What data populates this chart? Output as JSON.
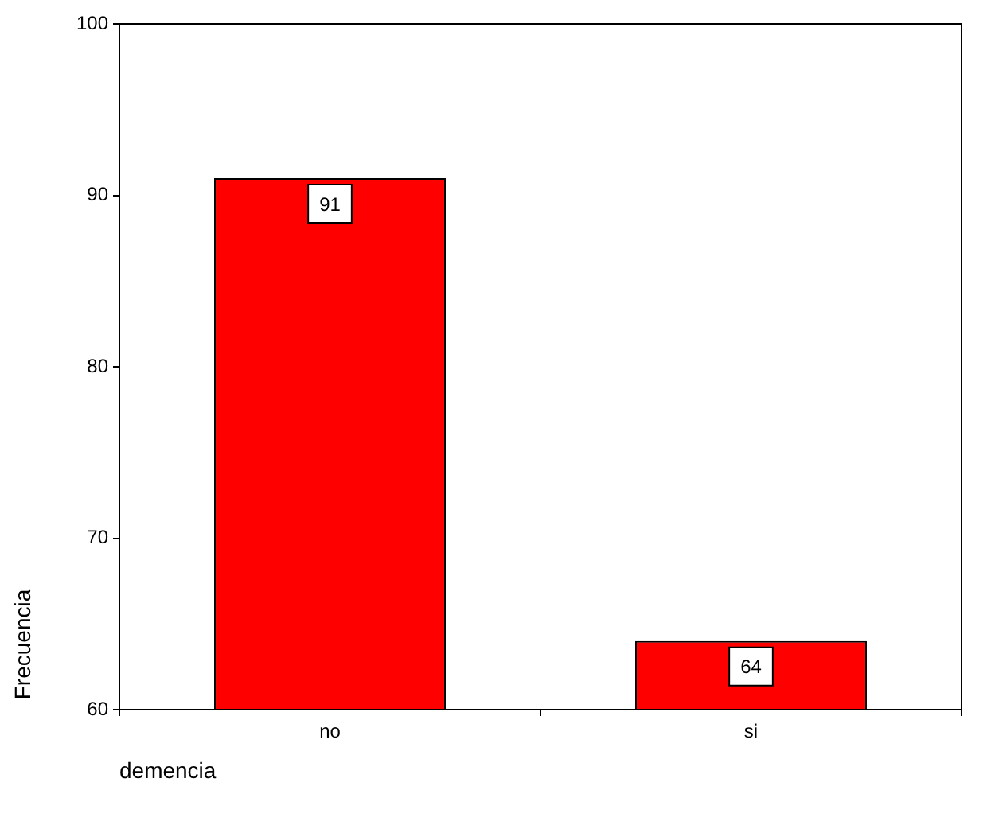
{
  "chart_data": {
    "type": "bar",
    "xlabel": "demencia",
    "ylabel": "Frecuencia",
    "categories": [
      "no",
      "si"
    ],
    "values": [
      91,
      64
    ],
    "color": "#ff0000",
    "ylim": [
      60,
      100
    ],
    "yticks": [
      60,
      70,
      80,
      90,
      100
    ],
    "grid": false,
    "data_labels": true,
    "legend": false
  }
}
